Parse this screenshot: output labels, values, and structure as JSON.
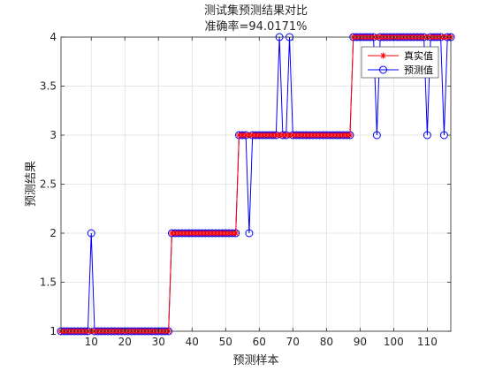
{
  "chart_data": {
    "type": "line",
    "title": "测试集预测结果对比",
    "subtitle": "准确率=94.0171%",
    "xlabel": "预测样本",
    "ylabel": "预测结果",
    "xlim": [
      1,
      117
    ],
    "ylim": [
      1,
      4
    ],
    "xticks": [
      10,
      20,
      30,
      40,
      50,
      60,
      70,
      80,
      90,
      100,
      110
    ],
    "yticks": [
      1,
      1.5,
      2,
      2.5,
      3,
      3.5,
      4
    ],
    "ytick_labels": [
      "1",
      "1.5",
      "2",
      "2.5",
      "3",
      "3.5",
      "4"
    ],
    "grid": true,
    "legend_position": "top-right",
    "series": [
      {
        "name": "真实值",
        "color": "#ff0000",
        "marker": "asterisk",
        "x": [
          1,
          2,
          3,
          4,
          5,
          6,
          7,
          8,
          9,
          10,
          11,
          12,
          13,
          14,
          15,
          16,
          17,
          18,
          19,
          20,
          21,
          22,
          23,
          24,
          25,
          26,
          27,
          28,
          29,
          30,
          31,
          32,
          33,
          34,
          35,
          36,
          37,
          38,
          39,
          40,
          41,
          42,
          43,
          44,
          45,
          46,
          47,
          48,
          49,
          50,
          51,
          52,
          53,
          54,
          55,
          56,
          57,
          58,
          59,
          60,
          61,
          62,
          63,
          64,
          65,
          66,
          67,
          68,
          69,
          70,
          71,
          72,
          73,
          74,
          75,
          76,
          77,
          78,
          79,
          80,
          81,
          82,
          83,
          84,
          85,
          86,
          87,
          88,
          89,
          90,
          91,
          92,
          93,
          94,
          95,
          96,
          97,
          98,
          99,
          100,
          101,
          102,
          103,
          104,
          105,
          106,
          107,
          108,
          109,
          110,
          111,
          112,
          113,
          114,
          115,
          116,
          117
        ],
        "y": [
          1,
          1,
          1,
          1,
          1,
          1,
          1,
          1,
          1,
          1,
          1,
          1,
          1,
          1,
          1,
          1,
          1,
          1,
          1,
          1,
          1,
          1,
          1,
          1,
          1,
          1,
          1,
          1,
          1,
          1,
          1,
          1,
          1,
          2,
          2,
          2,
          2,
          2,
          2,
          2,
          2,
          2,
          2,
          2,
          2,
          2,
          2,
          2,
          2,
          2,
          2,
          2,
          2,
          3,
          3,
          3,
          3,
          3,
          3,
          3,
          3,
          3,
          3,
          3,
          3,
          3,
          3,
          3,
          3,
          3,
          3,
          3,
          3,
          3,
          3,
          3,
          3,
          3,
          3,
          3,
          3,
          3,
          3,
          3,
          3,
          3,
          3,
          4,
          4,
          4,
          4,
          4,
          4,
          4,
          4,
          4,
          4,
          4,
          4,
          4,
          4,
          4,
          4,
          4,
          4,
          4,
          4,
          4,
          4,
          4,
          4,
          4,
          4,
          4,
          4,
          4,
          4
        ]
      },
      {
        "name": "预测值",
        "color": "#0000ff",
        "marker": "circle",
        "x": [
          1,
          2,
          3,
          4,
          5,
          6,
          7,
          8,
          9,
          10,
          11,
          12,
          13,
          14,
          15,
          16,
          17,
          18,
          19,
          20,
          21,
          22,
          23,
          24,
          25,
          26,
          27,
          28,
          29,
          30,
          31,
          32,
          33,
          34,
          35,
          36,
          37,
          38,
          39,
          40,
          41,
          42,
          43,
          44,
          45,
          46,
          47,
          48,
          49,
          50,
          51,
          52,
          53,
          54,
          55,
          56,
          57,
          58,
          59,
          60,
          61,
          62,
          63,
          64,
          65,
          66,
          67,
          68,
          69,
          70,
          71,
          72,
          73,
          74,
          75,
          76,
          77,
          78,
          79,
          80,
          81,
          82,
          83,
          84,
          85,
          86,
          87,
          88,
          89,
          90,
          91,
          92,
          93,
          94,
          95,
          96,
          97,
          98,
          99,
          100,
          101,
          102,
          103,
          104,
          105,
          106,
          107,
          108,
          109,
          110,
          111,
          112,
          113,
          114,
          115,
          116,
          117
        ],
        "y": [
          1,
          1,
          1,
          1,
          1,
          1,
          1,
          1,
          1,
          2,
          1,
          1,
          1,
          1,
          1,
          1,
          1,
          1,
          1,
          1,
          1,
          1,
          1,
          1,
          1,
          1,
          1,
          1,
          1,
          1,
          1,
          1,
          1,
          2,
          2,
          2,
          2,
          2,
          2,
          2,
          2,
          2,
          2,
          2,
          2,
          2,
          2,
          2,
          2,
          2,
          2,
          2,
          2,
          3,
          3,
          3,
          2,
          3,
          3,
          3,
          3,
          3,
          3,
          3,
          3,
          4,
          3,
          3,
          4,
          3,
          3,
          3,
          3,
          3,
          3,
          3,
          3,
          3,
          3,
          3,
          3,
          3,
          3,
          3,
          3,
          3,
          3,
          4,
          4,
          4,
          4,
          4,
          4,
          4,
          3,
          4,
          4,
          4,
          4,
          4,
          4,
          4,
          4,
          4,
          4,
          4,
          4,
          4,
          4,
          3,
          4,
          4,
          4,
          4,
          3,
          4,
          4
        ]
      }
    ]
  }
}
